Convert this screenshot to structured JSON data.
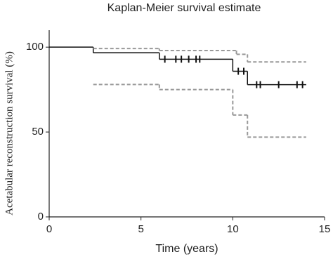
{
  "chart_data": {
    "type": "step",
    "title": "Kaplan-Meier survival estimate",
    "x_label": "Time (years)",
    "y_label": "Acetabular reconstruction survival (%)",
    "xlim": [
      0,
      15
    ],
    "xticks": [
      0,
      5,
      10,
      15
    ],
    "ylim": [
      0,
      110
    ],
    "yticks": [
      0,
      50,
      100
    ],
    "series": [
      {
        "color": "#111111",
        "dash": false,
        "x": [
          0,
          2.4,
          6,
          10,
          10.8,
          14
        ],
        "values": [
          100,
          96.7,
          92.9,
          85.8,
          77.9,
          77.9
        ]
      },
      {
        "color": "#999999",
        "dash": true,
        "x": [
          2.4,
          6,
          10.2,
          10.8,
          14
        ],
        "values": [
          99.2,
          98,
          95.8,
          91.3,
          91.3
        ]
      },
      {
        "color": "#999999",
        "dash": true,
        "x": [
          2.4,
          6,
          10,
          10.8,
          14
        ],
        "values": [
          78,
          75,
          60,
          47,
          47
        ]
      }
    ],
    "censored": {
      "color": "#111111",
      "x": [
        6.3,
        6.9,
        7.2,
        7.6,
        8.0,
        8.2,
        10.3,
        10.6,
        11.3,
        11.5,
        12.5,
        13.5,
        13.8
      ],
      "values": [
        92.9,
        92.9,
        92.9,
        92.9,
        92.9,
        92.9,
        85.8,
        85.8,
        77.9,
        77.9,
        77.9,
        77.9,
        77.9
      ]
    }
  }
}
